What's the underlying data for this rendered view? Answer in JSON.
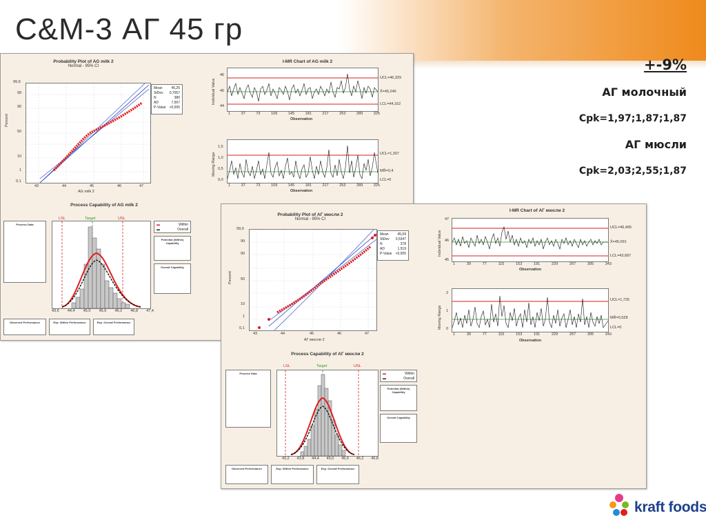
{
  "slide": {
    "title": "C&M-3 АГ 45 гр",
    "accent_color": "#ef8a1c"
  },
  "summary": {
    "tolerance": "+-9%",
    "milk_label": "АГ молочный",
    "milk_cpk": "Cpk=1,97;1,87;1,87",
    "muesli_label": "АГ мюсли",
    "muesli_cpk": "Cpk=2,03;2,55;1,87"
  },
  "milk_panel": {
    "prob_title": "Probability Plot of AG milk 2",
    "prob_subtitle": "Normal - 95% CI",
    "prob_xlabel": "AG milk 2",
    "prob_ylabel": "Percent",
    "prob_yticks": [
      "99,9",
      "99",
      "90",
      "50",
      "10",
      "1",
      "0,1"
    ],
    "prob_xticks": [
      "43",
      "44",
      "45",
      "46",
      "47"
    ],
    "prob_legend": [
      {
        "k": "Mean",
        "v": "45,25"
      },
      {
        "k": "StDev",
        "v": "0,7057"
      },
      {
        "k": "N",
        "v": "380"
      },
      {
        "k": "AD",
        "v": "7,567"
      },
      {
        "k": "P-Value",
        "v": "<0,005"
      }
    ],
    "imr_title": "I-MR Chart of AG milk 2",
    "imr_i_ylabel": "Individual Value",
    "imr_i_yticks": [
      "46",
      "45",
      "44"
    ],
    "imr_i_ucl": "UCL=46,329",
    "imr_i_mean": "X̄=45,246",
    "imr_i_lcl": "LCL=44,162",
    "imr_mr_ylabel": "Moving Range",
    "imr_mr_yticks": [
      "1,5",
      "1,0",
      "0,5",
      "0,0"
    ],
    "imr_mr_ucl": "UCL=1,307",
    "imr_mr_mean": "MR̄=0,4",
    "imr_mr_lcl": "LCL=0",
    "imr_xlabel": "Observation",
    "imr_xticks": [
      "1",
      "37",
      "73",
      "109",
      "145",
      "181",
      "217",
      "253",
      "289",
      "325"
    ],
    "cap_title": "Process Capability of AG milk 2",
    "cap_lsl": "LSL",
    "cap_target": "Target",
    "cap_usl": "USL",
    "cap_within": "Within",
    "cap_overall": "Overall",
    "cap_xticks": [
      "44,4",
      "45,0",
      "45,6",
      "46,2",
      "46,8",
      "47,4"
    ],
    "cap_xticks_left": "43,6",
    "cap_process_data_title": "Process Data",
    "cap_potential_title": "Potential (Within) Capability",
    "cap_overall_title": "Overall Capability",
    "cap_observed_title": "Observed Performance",
    "cap_exp_within_title": "Exp. Within Performance",
    "cap_exp_overall_title": "Exp. Overall Performance"
  },
  "muesli_panel": {
    "prob_title": "Probability Plot of АГ мюсли 2",
    "prob_subtitle": "Normal - 95% CI",
    "prob_xlabel": "АГ мюсли 2",
    "prob_ylabel": "Percent",
    "prob_yticks": [
      "99,9",
      "99",
      "90",
      "50",
      "10",
      "1",
      "0,1"
    ],
    "prob_xticks": [
      "43",
      "44",
      "45",
      "46",
      "47"
    ],
    "prob_legend": [
      {
        "k": "Mean",
        "v": "45,09"
      },
      {
        "k": "StDev",
        "v": "0,5347"
      },
      {
        "k": "N",
        "v": "378"
      },
      {
        "k": "AD",
        "v": "1,519"
      },
      {
        "k": "P-Value",
        "v": "<0,005"
      }
    ],
    "imr_title": "I-MR Chart of АГ мюсли 2",
    "imr_i_ylabel": "Individual Value",
    "imr_i_yticks": [
      "47",
      "46",
      "45"
    ],
    "imr_i_ucl": "UCL=46,495",
    "imr_i_mean": "X̄=45,091",
    "imr_i_lcl": "LCL=43,687",
    "imr_mr_ylabel": "Moving Range",
    "imr_mr_yticks": [
      "2",
      "1",
      "0"
    ],
    "imr_mr_ucl": "UCL=1,725",
    "imr_mr_mean": "MR̄=0,528",
    "imr_mr_lcl": "LCL=0",
    "imr_xlabel": "Observation",
    "imr_xticks": [
      "1",
      "39",
      "77",
      "115",
      "153",
      "191",
      "229",
      "267",
      "305",
      "343"
    ],
    "cap_title": "Process Capability of АГ мюсли 2",
    "cap_lsl": "LSL",
    "cap_target": "Target",
    "cap_usl": "USL",
    "cap_within": "Within",
    "cap_overall": "Overall",
    "cap_xticks": [
      "43,2",
      "43,8",
      "44,4",
      "45,0",
      "45,6",
      "46,2",
      "46,8"
    ],
    "cap_process_data_title": "Process Data",
    "cap_potential_title": "Potential (Within) Capability",
    "cap_overall_title": "Overall Capability",
    "cap_observed_title": "Observed Performance",
    "cap_exp_within_title": "Exp. Within Performance",
    "cap_exp_overall_title": "Exp. Overall Performance"
  },
  "logo": {
    "text": "kraft foods"
  }
}
